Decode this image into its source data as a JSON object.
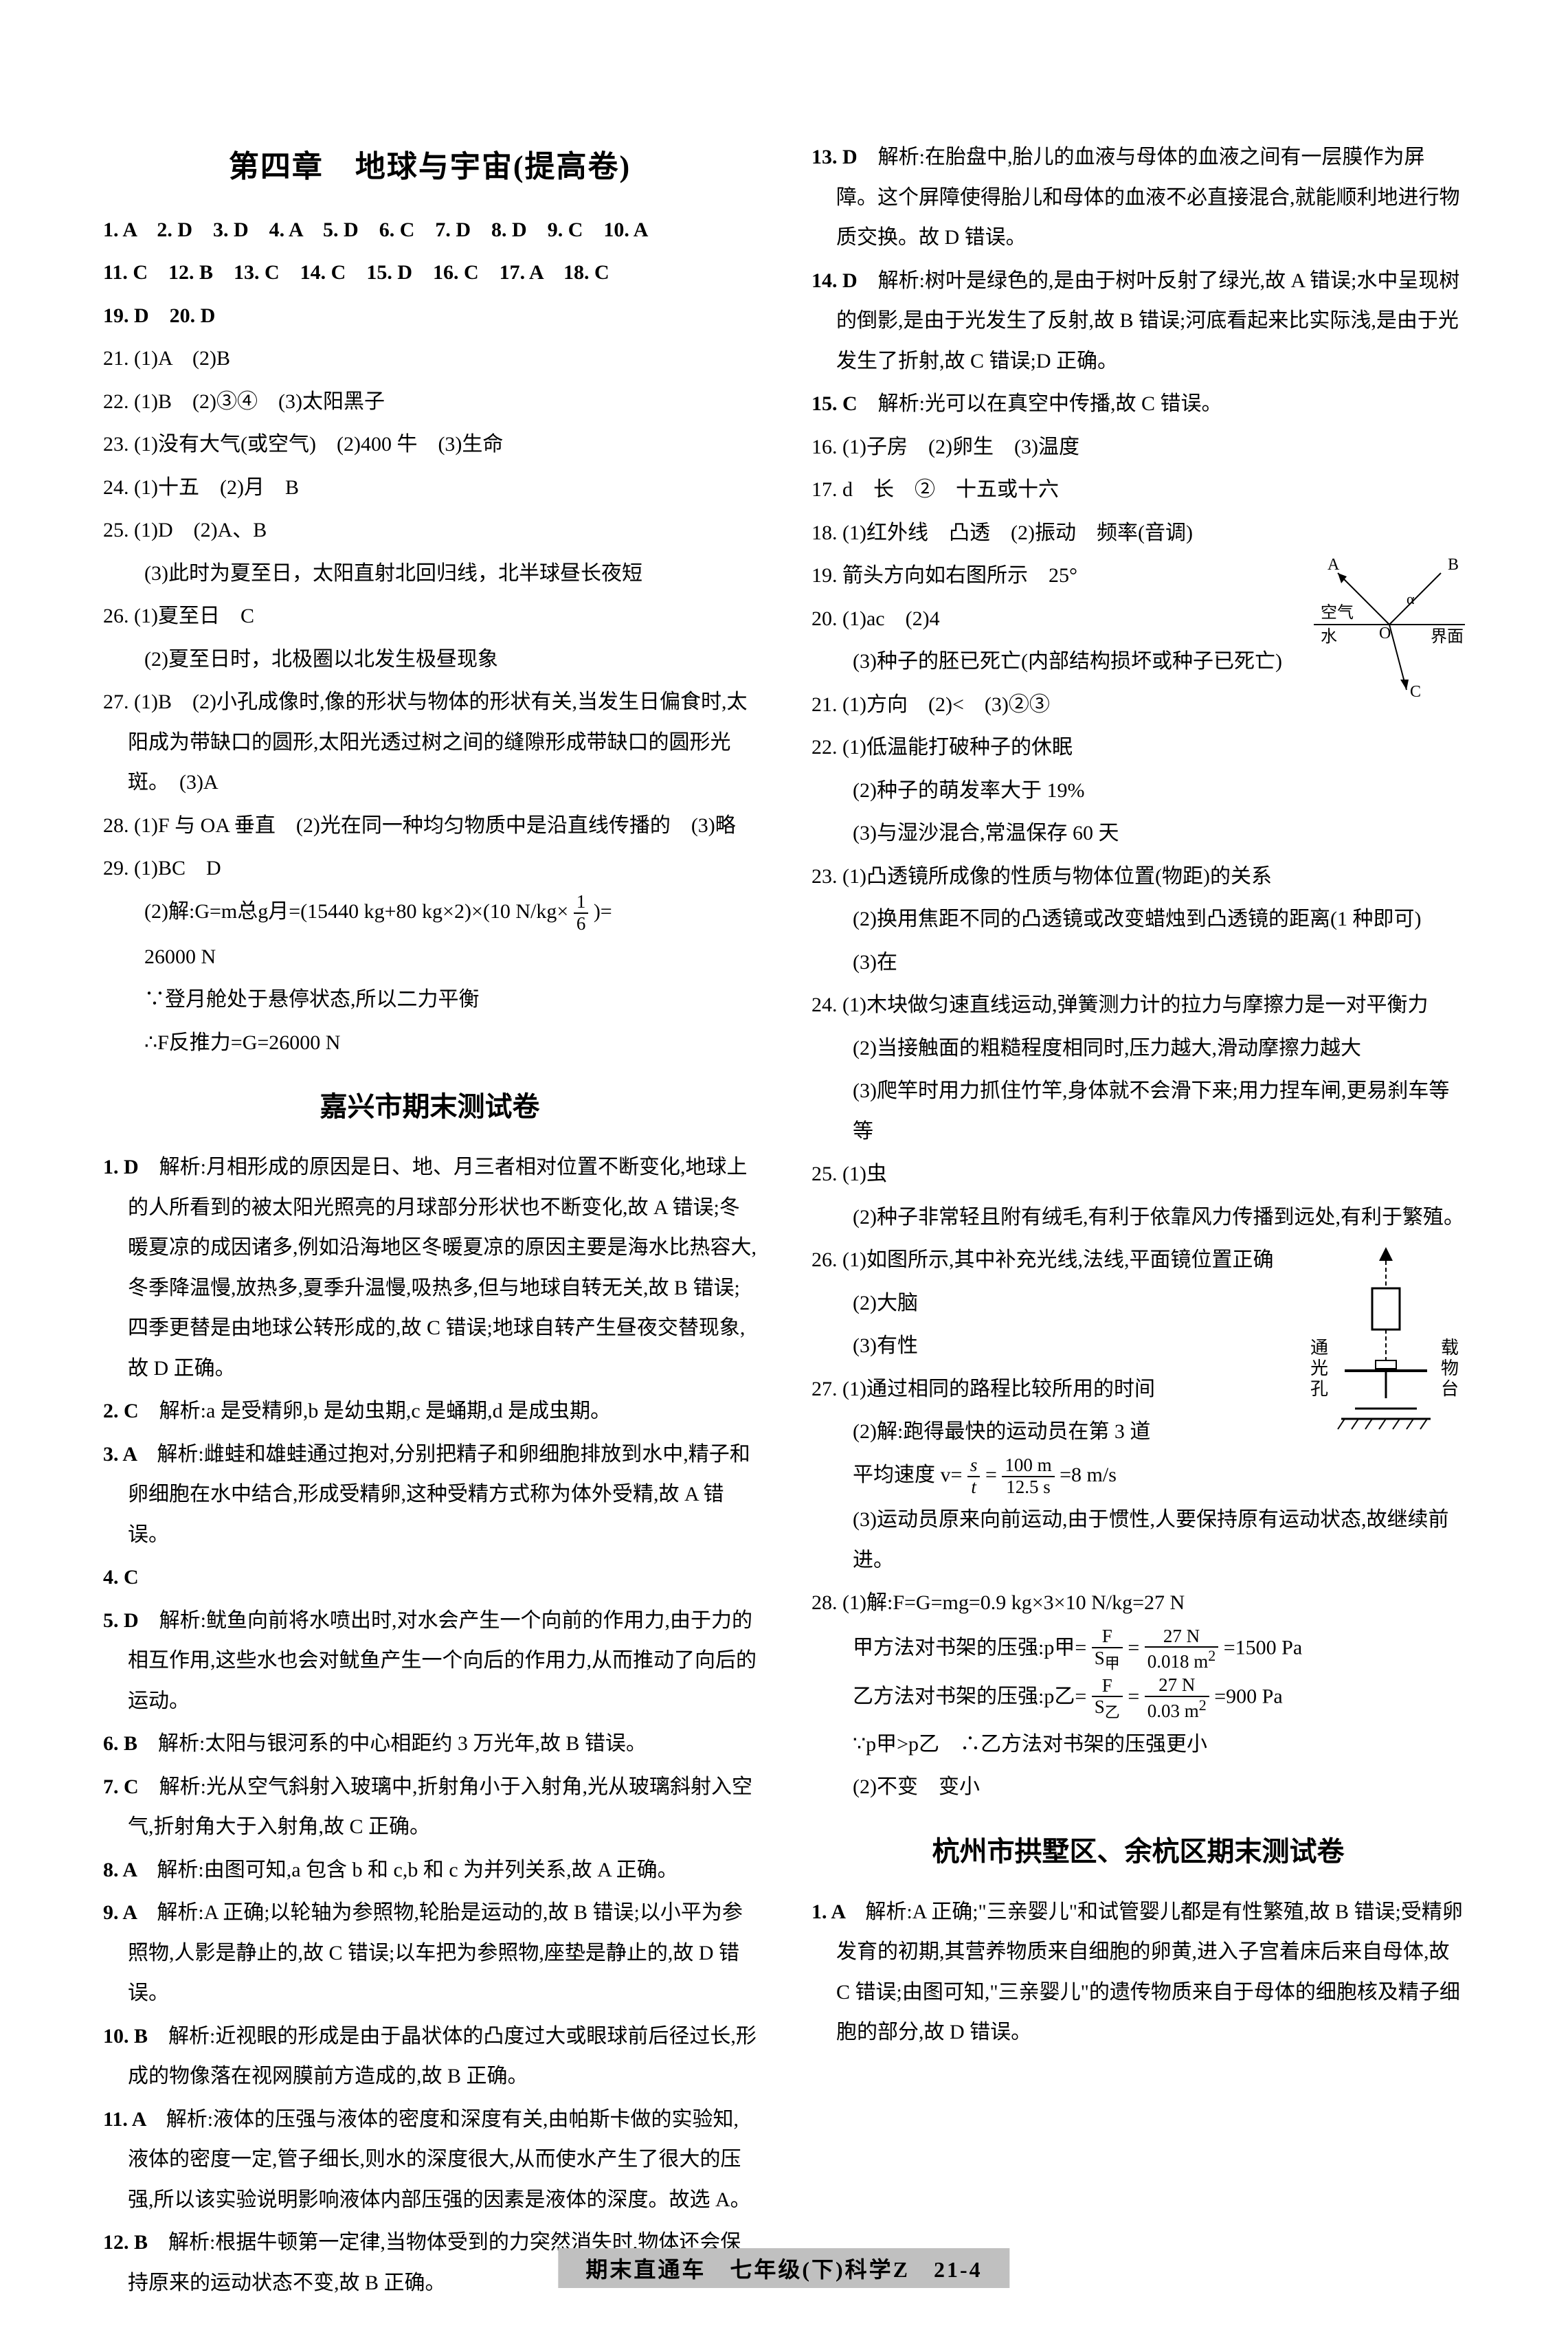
{
  "footer": "期末直通车　七年级(下)科学Z　21-4",
  "left": {
    "title": "第四章　地球与宇宙(提高卷)",
    "lines": [
      "1. A　2. D　3. D　4. A　5. D　6. C　7. D　8. D　9. C　10. A",
      "11. C　12. B　13. C　14. C　15. D　16. C　17. A　18. C",
      "19. D　20. D",
      "21. (1)A　(2)B",
      "22. (1)B　(2)③④　(3)太阳黑子",
      "23. (1)没有大气(或空气)　(2)400 牛　(3)生命",
      "24. (1)十五　(2)月　B",
      "25. (1)D　(2)A、B",
      "(3)此时为夏至日，太阳直射北回归线，北半球昼长夜短",
      "26. (1)夏至日　C",
      "(2)夏至日时，北极圈以北发生极昼现象",
      "27. (1)B　(2)小孔成像时,像的形状与物体的形状有关,当发生日偏食时,太阳成为带缺口的圆形,太阳光透过树之间的缝隙形成带缺口的圆形光斑。　(3)A",
      "28. (1)F 与 OA 垂直　(2)光在同一种均匀物质中是沿直线传播的　(3)略",
      "29. (1)BC　D"
    ],
    "q29_calc": [
      "(2)解:G=m总g月=(15440 kg+80 kg×2)×(10 N/kg×",
      ")=",
      "26000 N",
      "∵登月舱处于悬停状态,所以二力平衡",
      "∴F反推力=G=26000 N"
    ],
    "sub_title": "嘉兴市期末测试卷",
    "jx": [
      {
        "n": "1. D",
        "t": "解析:月相形成的原因是日、地、月三者相对位置不断变化,地球上的人所看到的被太阳光照亮的月球部分形状也不断变化,故 A 错误;冬暖夏凉的成因诸多,例如沿海地区冬暖夏凉的原因主要是海水比热容大,冬季降温慢,放热多,夏季升温慢,吸热多,但与地球自转无关,故 B 错误;四季更替是由地球公转形成的,故 C 错误;地球自转产生昼夜交替现象,故 D 正确。"
      },
      {
        "n": "2. C",
        "t": "解析:a 是受精卵,b 是幼虫期,c 是蛹期,d 是成虫期。"
      },
      {
        "n": "3. A",
        "t": "解析:雌蛙和雄蛙通过抱对,分别把精子和卵细胞排放到水中,精子和卵细胞在水中结合,形成受精卵,这种受精方式称为体外受精,故 A 错误。"
      },
      {
        "n": "4. C",
        "t": ""
      },
      {
        "n": "5. D",
        "t": "解析:鱿鱼向前将水喷出时,对水会产生一个向前的作用力,由于力的相互作用,这些水也会对鱿鱼产生一个向后的作用力,从而推动了向后的运动。"
      },
      {
        "n": "6. B",
        "t": "解析:太阳与银河系的中心相距约 3 万光年,故 B 错误。"
      },
      {
        "n": "7. C",
        "t": "解析:光从空气斜射入玻璃中,折射角小于入射角,光从玻璃斜射入空气,折射角大于入射角,故 C 正确。"
      },
      {
        "n": "8. A",
        "t": "解析:由图可知,a 包含 b 和 c,b 和 c 为并列关系,故 A 正确。"
      },
      {
        "n": "9. A",
        "t": "解析:A 正确;以轮轴为参照物,轮胎是运动的,故 B 错误;以小平为参照物,人影是静止的,故 C 错误;以车把为参照物,座垫是静止的,故 D 错误。"
      },
      {
        "n": "10. B",
        "t": "解析:近视眼的形成是由于晶状体的凸度过大或眼球前后径过长,形成的物像落在视网膜前方造成的,故 B 正确。"
      },
      {
        "n": "11. A",
        "t": "解析:液体的压强与液体的密度和深度有关,由帕斯卡做的实验知,液体的密度一定,管子细长,则水的深度很大,从而使水产生了很大的压强,所以该实验说明影响液体内部压强的因素是液体的深度。故选 A。"
      },
      {
        "n": "12. B",
        "t": "解析:根据牛顿第一定律,当物体受到的力突然消失时,物体还会保持原来的运动状态不变,故 B 正确。"
      }
    ]
  },
  "right": {
    "top": [
      {
        "n": "13. D",
        "t": "解析:在胎盘中,胎儿的血液与母体的血液之间有一层膜作为屏障。这个屏障使得胎儿和母体的血液不必直接混合,就能顺利地进行物质交换。故 D 错误。"
      },
      {
        "n": "14. D",
        "t": "解析:树叶是绿色的,是由于树叶反射了绿光,故 A 错误;水中呈现树的倒影,是由于光发生了反射,故 B 错误;河底看起来比实际浅,是由于光发生了折射,故 C 错误;D 正确。"
      },
      {
        "n": "15. C",
        "t": "解析:光可以在真空中传播,故 C 错误。"
      }
    ],
    "plain": [
      "16. (1)子房　(2)卵生　(3)温度",
      "17. d　长　②　十五或十六",
      "18. (1)红外线　凸透　(2)振动　频率(音调)",
      "19. 箭头方向如右图所示　25°",
      "20. (1)ac　(2)4",
      "(3)种子的胚已死亡(内部结构损坏或种子已死亡)",
      "21. (1)方向　(2)<　(3)②③",
      "22. (1)低温能打破种子的休眠",
      "(2)种子的萌发率大于 19%",
      "(3)与湿沙混合,常温保存 60 天",
      "23. (1)凸透镜所成像的性质与物体位置(物距)的关系",
      "(2)换用焦距不同的凸透镜或改变蜡烛到凸透镜的距离(1 种即可)",
      "(3)在",
      "24. (1)木块做匀速直线运动,弹簧测力计的拉力与摩擦力是一对平衡力",
      "(2)当接触面的粗糙程度相同时,压力越大,滑动摩擦力越大",
      "(3)爬竿时用力抓住竹竿,身体就不会滑下来;用力捏车闸,更易刹车等等",
      "25. (1)虫",
      "(2)种子非常轻且附有绒毛,有利于依靠风力传播到远处,有利于繁殖。",
      "26. (1)如图所示,其中补充光线,法线,平面镜位置正确",
      "(2)大脑",
      "(3)有性",
      "27. (1)通过相同的路程比较所用的时间",
      "(2)解:跑得最快的运动员在第 3 道"
    ],
    "speed_line_pre": "平均速度 v=",
    "speed_val": "=8 m/s",
    "after_speed": [
      "(3)运动员原来向前运动,由于惯性,人要保持原有运动状态,故继续前进。"
    ],
    "q28": {
      "l1": "28. (1)解:F=G=mg=0.9 kg×3×10 N/kg=27 N",
      "l2a": "甲方法对书架的压强:p甲=",
      "l2b": "=1500 Pa",
      "l3a": "乙方法对书架的压强:p乙=",
      "l3b": "=900 Pa",
      "l4": "∵p甲>p乙　∴乙方法对书架的压强更小",
      "l5": "(2)不变　变小"
    },
    "sub_title": "杭州市拱墅区、余杭区期末测试卷",
    "hz": [
      {
        "n": "1. A",
        "t": "解析:A 正确;\"三亲婴儿\"和试管婴儿都是有性繁殖,故 B 错误;受精卵发育的初期,其营养物质来自细胞的卵黄,进入子宫着床后来自母体,故 C 错误;由图可知,\"三亲婴儿\"的遗传物质来自于母体的细胞核及精子细胞的部分,故 D 错误。"
      }
    ]
  },
  "fig19": {
    "labels": {
      "A": "A",
      "B": "B",
      "C": "C",
      "O": "O",
      "air": "空气",
      "water": "水",
      "surf": "界面",
      "alpha": "α"
    }
  },
  "fig26": {
    "labels": {
      "t1": "通",
      "t2": "光",
      "t3": "孔",
      "r1": "载",
      "r2": "物",
      "r3": "台"
    }
  }
}
